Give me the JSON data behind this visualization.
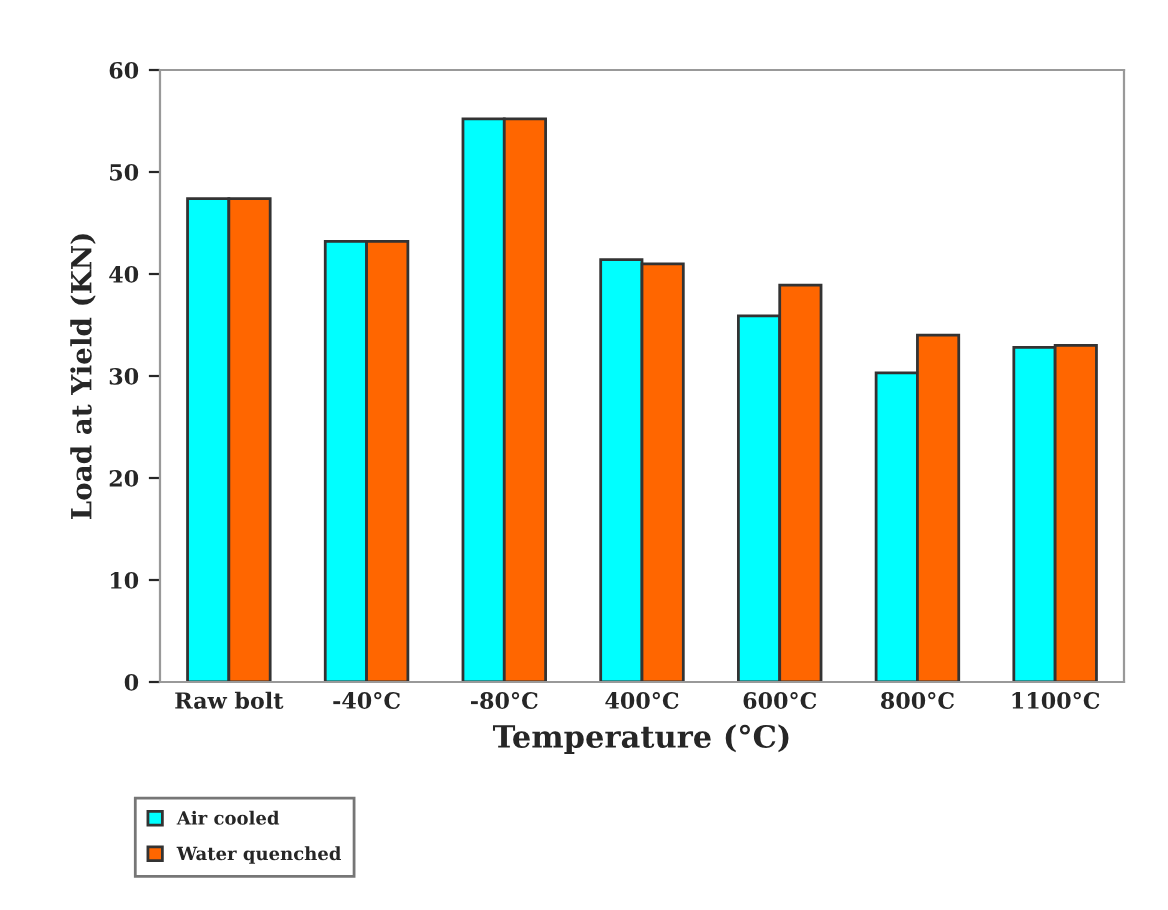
{
  "chart_data": {
    "type": "bar",
    "xlabel": "Temperature (°C)",
    "ylabel": "Load at Yield (KN)",
    "categories": [
      "Raw bolt",
      "-40°C",
      "-80°C",
      "400°C",
      "600°C",
      "800°C",
      "1100°C"
    ],
    "series": [
      {
        "name": "Air cooled",
        "color": "#00ffff",
        "values": [
          47.4,
          43.2,
          55.2,
          41.4,
          35.9,
          30.3,
          32.8
        ]
      },
      {
        "name": "Water quenched",
        "color": "#ff6600",
        "values": [
          47.4,
          43.2,
          55.2,
          41.0,
          38.9,
          34.0,
          33.0
        ]
      }
    ],
    "ylim": [
      0,
      60
    ],
    "yticks": [
      0,
      10,
      20,
      30,
      40,
      50,
      60
    ],
    "grid": false,
    "legend": "bottom left"
  }
}
